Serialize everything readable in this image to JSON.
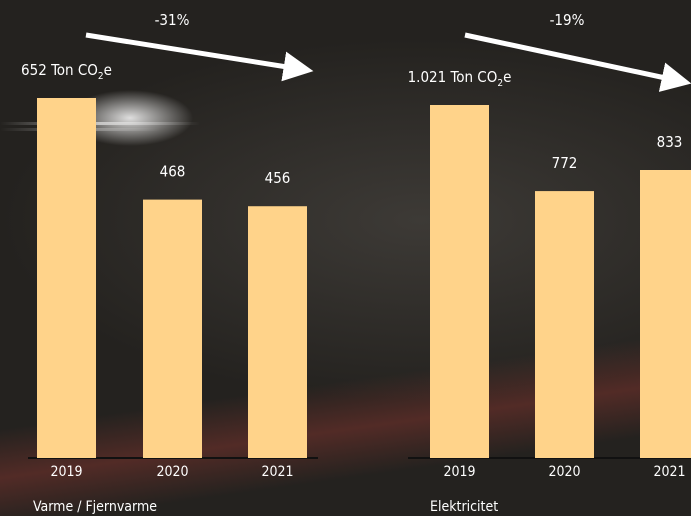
{
  "colors": {
    "bar": "#ffd38a",
    "text": "#ffffff",
    "arrow": "#ffffff",
    "baseline": "#111111"
  },
  "chart_data": [
    {
      "type": "bar",
      "group_label": "Varme / Fjernvarme",
      "categories": [
        "2019",
        "2020",
        "2021"
      ],
      "values": [
        652,
        468,
        456
      ],
      "value_labels": [
        "652",
        "468",
        "456"
      ],
      "unit_label": "Ton CO2e",
      "change_label": "-31%",
      "ylim": [
        0,
        700
      ]
    },
    {
      "type": "bar",
      "group_label": "Elektricitet",
      "categories": [
        "2019",
        "2020",
        "2021"
      ],
      "values": [
        1021,
        772,
        833
      ],
      "value_labels": [
        "1.021",
        "772",
        "833"
      ],
      "unit_label": "Ton CO2e",
      "change_label": "-19%",
      "ylim": [
        0,
        1100
      ]
    }
  ]
}
